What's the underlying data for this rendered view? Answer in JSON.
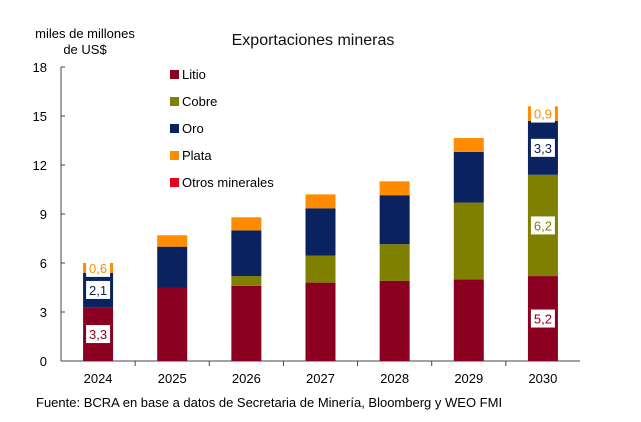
{
  "chart_data": {
    "type": "bar",
    "stacked": true,
    "title": "Exportaciones mineras",
    "ylabel": "miles de millones de US$",
    "ylabel_lines": [
      "miles de millones",
      "de US$"
    ],
    "ylim": [
      0,
      18
    ],
    "yticks": [
      0,
      3,
      6,
      9,
      12,
      15,
      18
    ],
    "categories": [
      "2024",
      "2025",
      "2026",
      "2027",
      "2028",
      "2029",
      "2030"
    ],
    "legend_position": "top-left",
    "grid": false,
    "series": [
      {
        "name": "Litio",
        "color": "#8B0020",
        "values": [
          3.3,
          4.5,
          4.6,
          4.8,
          4.9,
          5.0,
          5.2
        ]
      },
      {
        "name": "Cobre",
        "color": "#7F7F00",
        "values": [
          0,
          0,
          0.6,
          1.65,
          2.25,
          4.7,
          6.2
        ]
      },
      {
        "name": "Oro",
        "color": "#0B2260",
        "values": [
          2.1,
          2.5,
          2.8,
          2.9,
          3.0,
          3.1,
          3.3
        ]
      },
      {
        "name": "Plata",
        "color": "#FF8C00",
        "values": [
          0.6,
          0.7,
          0.8,
          0.85,
          0.85,
          0.85,
          0.9
        ]
      },
      {
        "name": "Otros minerales",
        "color": "#E8001C",
        "values": [
          0,
          0,
          0,
          0,
          0,
          0,
          0
        ]
      }
    ],
    "data_labels": [
      {
        "category": "2024",
        "series": "Litio",
        "text": "3,3"
      },
      {
        "category": "2024",
        "series": "Oro",
        "text": "2,1"
      },
      {
        "category": "2024",
        "series": "Plata",
        "text": "0,6"
      },
      {
        "category": "2030",
        "series": "Litio",
        "text": "5,2"
      },
      {
        "category": "2030",
        "series": "Cobre",
        "text": "6,2"
      },
      {
        "category": "2030",
        "series": "Oro",
        "text": "3,3"
      },
      {
        "category": "2030",
        "series": "Plata",
        "text": "0,9"
      }
    ],
    "source": "Fuente: BCRA en base a datos de Secretaria de Minería, Bloomberg y WEO FMI"
  }
}
